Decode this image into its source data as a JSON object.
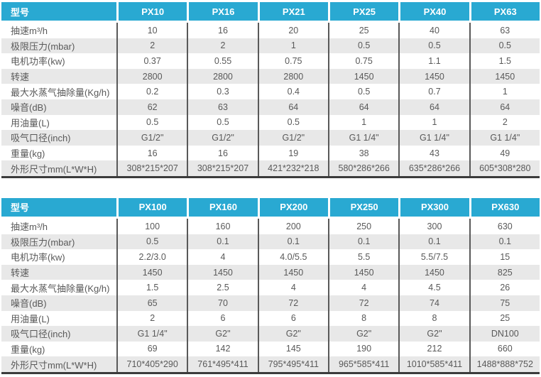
{
  "colors": {
    "header_bg": "#29a9d2",
    "header_text": "#ffffff",
    "row_bg": "#ffffff",
    "row_alt_bg": "#e8e8e8",
    "column_divider": "#595959",
    "table_bottom_border": "#3b3b3b",
    "body_text": "#595959"
  },
  "tables": [
    {
      "header": {
        "label": "型号",
        "models": [
          "PX10",
          "PX16",
          "PX21",
          "PX25",
          "PX40",
          "PX63"
        ]
      },
      "rows": [
        {
          "label": "抽速m³/h",
          "values": [
            "10",
            "16",
            "20",
            "25",
            "40",
            "63"
          ]
        },
        {
          "label": "极限压力(mbar)",
          "values": [
            "2",
            "2",
            "1",
            "0.5",
            "0.5",
            "0.5"
          ]
        },
        {
          "label": "电机功率(kw)",
          "values": [
            "0.37",
            "0.55",
            "0.75",
            "0.75",
            "1.1",
            "1.5"
          ]
        },
        {
          "label": "转速",
          "values": [
            "2800",
            "2800",
            "2800",
            "1450",
            "1450",
            "1450"
          ]
        },
        {
          "label": "最大水蒸气抽除量(Kg/h)",
          "values": [
            "0.2",
            "0.3",
            "0.4",
            "0.5",
            "0.7",
            "1"
          ]
        },
        {
          "label": "噪音(dB)",
          "values": [
            "62",
            "63",
            "64",
            "64",
            "64",
            "64"
          ]
        },
        {
          "label": "用油量(L)",
          "values": [
            "0.5",
            "0.5",
            "0.5",
            "1",
            "1",
            "2"
          ]
        },
        {
          "label": "吸气口径(inch)",
          "values": [
            "G1/2\"",
            "G1/2\"",
            "G1/2\"",
            "G1 1/4\"",
            "G1 1/4\"",
            "G1 1/4\""
          ]
        },
        {
          "label": "重量(kg)",
          "values": [
            "16",
            "16",
            "19",
            "38",
            "43",
            "49"
          ]
        },
        {
          "label": "外形尺寸mm(L*W*H)",
          "values": [
            "308*215*207",
            "308*215*207",
            "421*232*218",
            "580*286*266",
            "635*286*266",
            "605*308*280"
          ]
        }
      ]
    },
    {
      "header": {
        "label": "型号",
        "models": [
          "PX100",
          "PX160",
          "PX200",
          "PX250",
          "PX300",
          "PX630"
        ]
      },
      "rows": [
        {
          "label": "抽速m³/h",
          "values": [
            "100",
            "160",
            "200",
            "250",
            "300",
            "630"
          ]
        },
        {
          "label": "极限压力(mbar)",
          "values": [
            "0.5",
            "0.1",
            "0.1",
            "0.1",
            "0.1",
            "0.1"
          ]
        },
        {
          "label": "电机功率(kw)",
          "values": [
            "2.2/3.0",
            "4",
            "4.0/5.5",
            "5.5",
            "5.5/7.5",
            "15"
          ]
        },
        {
          "label": "转速",
          "values": [
            "1450",
            "1450",
            "1450",
            "1450",
            "1450",
            "825"
          ]
        },
        {
          "label": "最大水蒸气抽除量(Kg/h)",
          "values": [
            "1.5",
            "2.5",
            "4",
            "4",
            "4.5",
            "26"
          ]
        },
        {
          "label": "噪音(dB)",
          "values": [
            "65",
            "70",
            "72",
            "72",
            "74",
            "75"
          ]
        },
        {
          "label": "用油量(L)",
          "values": [
            "2",
            "6",
            "6",
            "8",
            "8",
            "25"
          ]
        },
        {
          "label": "吸气口径(inch)",
          "values": [
            "G1 1/4\"",
            "G2\"",
            "G2\"",
            "G2\"",
            "G2\"",
            "DN100"
          ]
        },
        {
          "label": "重量(kg)",
          "values": [
            "69",
            "142",
            "145",
            "190",
            "212",
            "660"
          ]
        },
        {
          "label": "外形尺寸mm(L*W*H)",
          "values": [
            "710*405*290",
            "761*495*411",
            "795*495*411",
            "965*585*411",
            "1010*585*411",
            "1488*888*752"
          ]
        }
      ]
    }
  ]
}
